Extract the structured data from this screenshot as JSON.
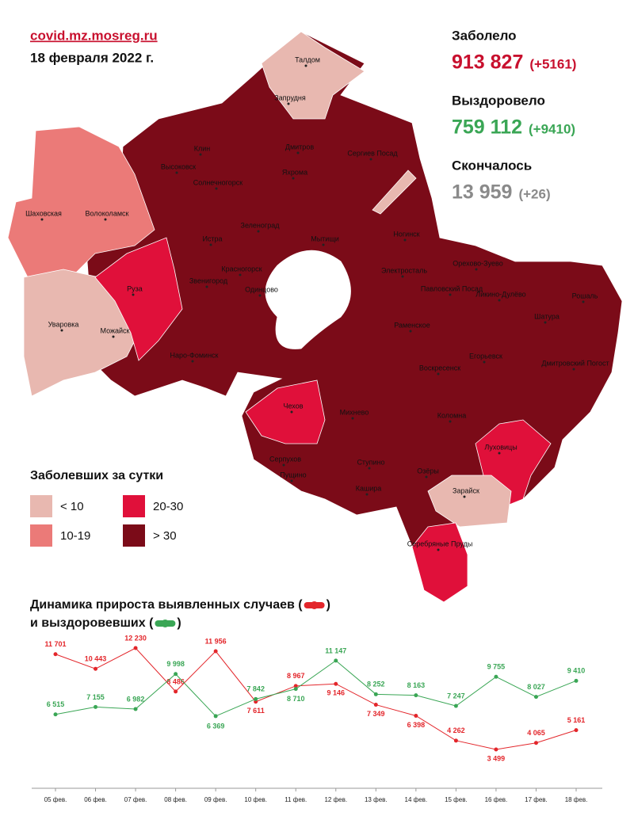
{
  "header": {
    "site": "covid.mz.mosreg.ru",
    "date": "18 февраля 2022 г."
  },
  "stats": [
    {
      "label": "Заболело",
      "value": "913 827",
      "delta": "(+5161)"
    },
    {
      "label": "Выздоровело",
      "value": "759 112",
      "delta": "(+9410)"
    },
    {
      "label": "Скончалось",
      "value": "13 959",
      "delta": "(+26)"
    }
  ],
  "legend": {
    "title": "Заболевших за сутки",
    "items": [
      "< 10",
      "10-19",
      "20-30",
      "> 30"
    ]
  },
  "map": {
    "labels": [
      "Талдом",
      "Запрудня",
      "Клин",
      "Дмитров",
      "Сергиев Посад",
      "Высоковск",
      "Яхрома",
      "Солнечногорск",
      "Шаховская",
      "Волоколамск",
      "Зеленоград",
      "Мытищи",
      "Истра",
      "Ногинск",
      "Красногорск",
      "Электросталь",
      "Орехово-Зуево",
      "Звенигород",
      "Павловский Посад",
      "Руза",
      "Одинцово",
      "Ликино-Дулёво",
      "Рошаль",
      "Шатура",
      "Уваровка",
      "Можайск",
      "Раменское",
      "Егорьевск",
      "Наро-Фоминск",
      "Воскресенск",
      "Дмитровский Погост",
      "Чехов",
      "Михнево",
      "Коломна",
      "Луховицы",
      "Серпухов",
      "Ступино",
      "Озёры",
      "Пущино",
      "Зарайск",
      "Кашира",
      "Серебряные Пруды"
    ]
  },
  "chart_data": {
    "type": "line",
    "title": [
      "Динамика прироста выявленных случаев (",
      ")"
    ],
    "subtitle": [
      "и выздоровевших (",
      ")"
    ],
    "categories": [
      "05 фев.",
      "06 фев.",
      "07 фев.",
      "08 фев.",
      "09 фев.",
      "10 фев.",
      "11 фев.",
      "12 фев.",
      "13 фев.",
      "14 фев.",
      "15 фев.",
      "16 фев.",
      "17 фев.",
      "18 фев."
    ],
    "series": [
      {
        "color": "#e3262b",
        "values": [
          11701,
          10443,
          12230,
          8486,
          11956,
          7611,
          8967,
          9146,
          7349,
          6398,
          4262,
          3499,
          4065,
          5161
        ],
        "value_labels": [
          "11 701",
          "10 443",
          "12 230",
          "8 486",
          "11 956",
          "7 611",
          "8 967",
          "9 146",
          "7 349",
          "6 398",
          "4 262",
          "3 499",
          "4 065",
          "5 161"
        ]
      },
      {
        "color": "#3aa655",
        "values": [
          6515,
          7155,
          6982,
          9998,
          6369,
          7842,
          8710,
          11147,
          8252,
          8163,
          7247,
          9755,
          8027,
          9410
        ],
        "value_labels": [
          "6 515",
          "7 155",
          "6 982",
          "9 998",
          "6 369",
          "7 842",
          "8 710",
          "11 147",
          "8 252",
          "8 163",
          "7 247",
          "9 755",
          "8 027",
          "9 410"
        ]
      }
    ]
  }
}
